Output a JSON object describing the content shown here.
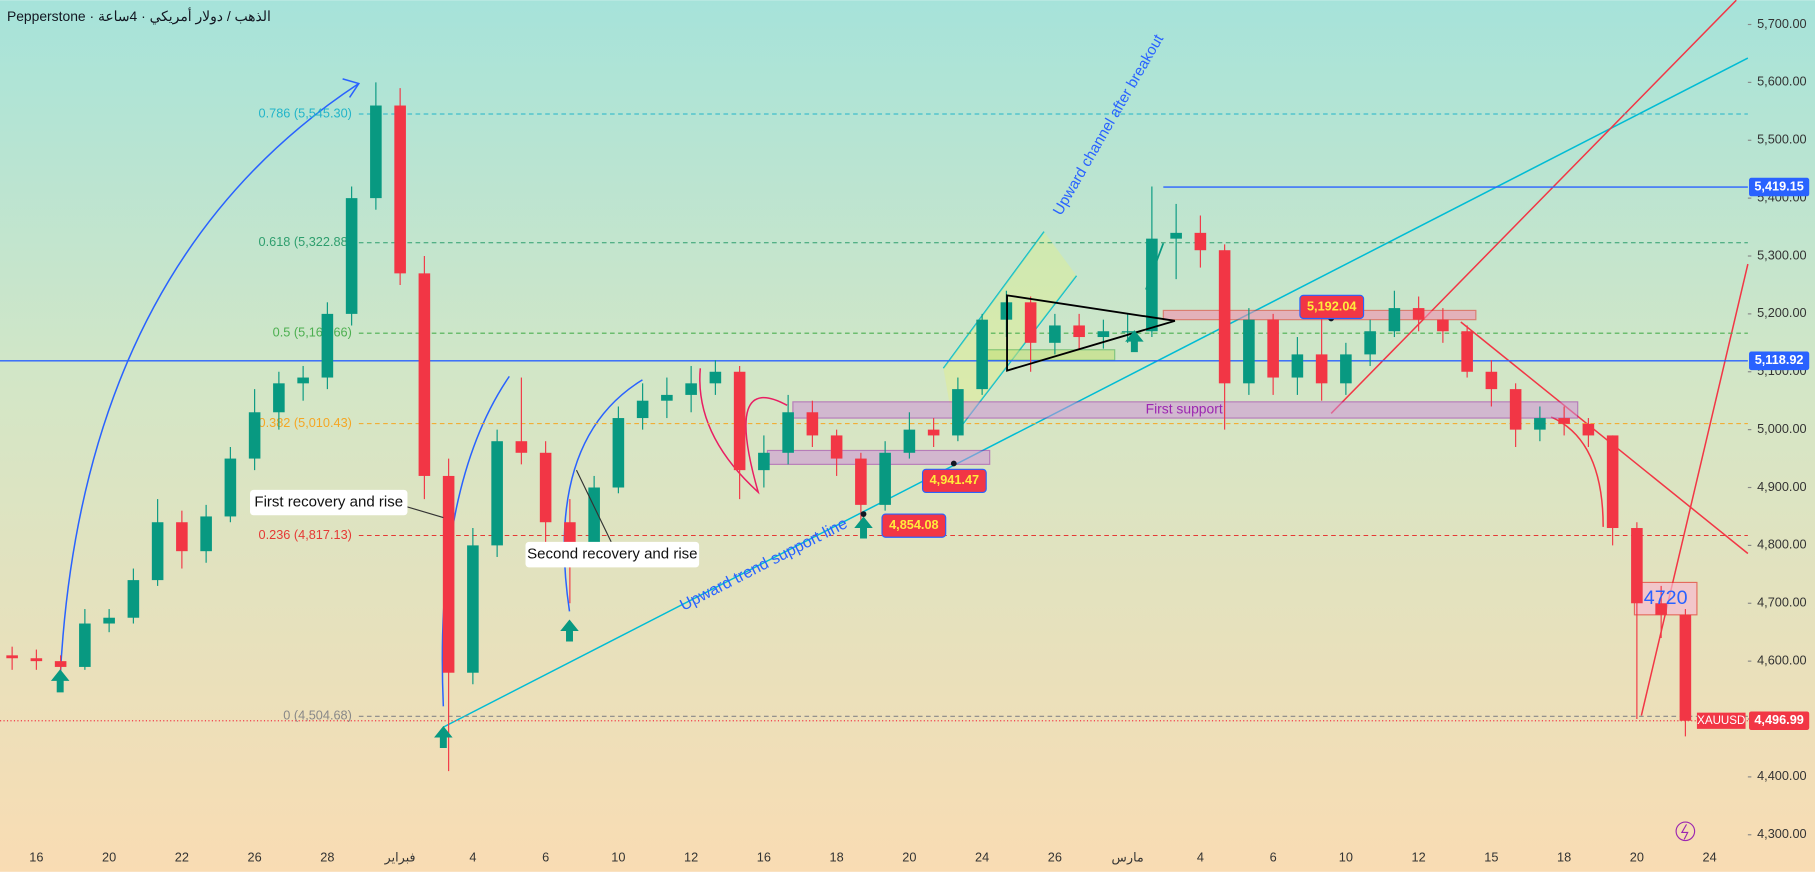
{
  "chart_data": {
    "type": "candlestick",
    "title": "Pepperstone · الذهب / دولار أمريكي · 4ساعة",
    "categories": [
      null,
      "16",
      null,
      null,
      "20",
      null,
      null,
      "22",
      null,
      null,
      "26",
      null,
      null,
      "28",
      null,
      null,
      "فبراير",
      null,
      null,
      "4",
      null,
      null,
      "6",
      null,
      null,
      "10",
      null,
      null,
      "12",
      null,
      null,
      "16",
      null,
      null,
      "18",
      null,
      null,
      "20",
      null,
      null,
      "24",
      null,
      null,
      "26",
      null,
      null,
      "مارس",
      null,
      null,
      "4",
      null,
      null,
      "6",
      null,
      null,
      "10",
      null,
      null,
      "12",
      null,
      null,
      "15",
      null,
      null,
      "18",
      null,
      null,
      "20",
      null,
      null,
      "24",
      null
    ],
    "open": [
      4610,
      4605,
      4600,
      4590,
      4665,
      4675,
      4740,
      4840,
      4790,
      4850,
      4950,
      5030,
      5080,
      5090,
      5200,
      5400,
      5560,
      5270,
      4920,
      4580,
      4800,
      4980,
      4960,
      4840,
      4790,
      4900,
      5020,
      5050,
      5060,
      5080,
      5100,
      4930,
      4960,
      5030,
      4990,
      4950,
      4870,
      4960,
      5000,
      4990,
      5070,
      5190,
      5220,
      5150,
      5180,
      5160,
      5170,
      5170,
      5330,
      5340,
      5310,
      5080,
      5190,
      5090,
      5130,
      5080,
      5130,
      5170,
      5210,
      5190,
      5170,
      5100,
      5070,
      5000,
      5020,
      5010,
      4990,
      4830,
      4700,
      4680,
      null,
      null
    ],
    "high": [
      4625,
      4620,
      4610,
      4690,
      4690,
      4760,
      4880,
      4860,
      4870,
      4970,
      5070,
      5100,
      5110,
      5220,
      5420,
      5600,
      5590,
      5300,
      4950,
      4830,
      5000,
      5090,
      4980,
      4880,
      4920,
      5040,
      5080,
      5090,
      5110,
      5120,
      5110,
      4990,
      5060,
      5050,
      5000,
      4960,
      4980,
      5030,
      5020,
      5090,
      5200,
      5240,
      5230,
      5200,
      5200,
      5190,
      5200,
      5420,
      5390,
      5370,
      5320,
      5210,
      5200,
      5160,
      5200,
      5150,
      5190,
      5240,
      5230,
      5210,
      5180,
      5120,
      5080,
      5040,
      5040,
      5020,
      4990,
      4840,
      4730,
      4690,
      null,
      null
    ],
    "low": [
      4585,
      4585,
      4550,
      4585,
      4650,
      4665,
      4730,
      4760,
      4770,
      4840,
      4930,
      5000,
      5050,
      5070,
      5180,
      5380,
      5250,
      4880,
      4410,
      4560,
      4780,
      4940,
      4800,
      4700,
      4770,
      4890,
      5000,
      5020,
      5030,
      5060,
      4880,
      4900,
      4940,
      4970,
      4920,
      4840,
      4860,
      4950,
      4970,
      4980,
      5060,
      5160,
      5100,
      5130,
      5140,
      5140,
      5150,
      5160,
      5260,
      5280,
      5000,
      5060,
      5060,
      5060,
      5050,
      5060,
      5110,
      5160,
      5170,
      5150,
      5090,
      5040,
      4970,
      4980,
      4990,
      4970,
      4800,
      4500,
      4640,
      4470,
      null,
      null
    ],
    "close": [
      4605,
      4600,
      4590,
      4665,
      4675,
      4740,
      4840,
      4790,
      4850,
      4950,
      5030,
      5080,
      5090,
      5200,
      5400,
      5560,
      5270,
      4920,
      4580,
      4800,
      4980,
      4960,
      4840,
      4790,
      4900,
      5020,
      5050,
      5060,
      5080,
      5100,
      4930,
      4960,
      5030,
      4990,
      4950,
      4870,
      4960,
      5000,
      4990,
      5070,
      5190,
      5220,
      5150,
      5180,
      5160,
      5170,
      5170,
      5330,
      5340,
      5310,
      5080,
      5190,
      5090,
      5130,
      5080,
      5130,
      5170,
      5210,
      5190,
      5170,
      5100,
      5070,
      5000,
      5020,
      5010,
      4990,
      4830,
      4700,
      4680,
      4496.99,
      null,
      null
    ],
    "up_color": "#089981",
    "down_color": "#f23645",
    "ylim": [
      4236,
      5742
    ],
    "yticks": [
      {
        "value": 4300,
        "label": "4,300.00"
      },
      {
        "value": 4400,
        "label": "4,400.00"
      },
      {
        "value": 4500,
        "label": "4,500.00"
      },
      {
        "value": 4600,
        "label": "4,600.00"
      },
      {
        "value": 4700,
        "label": "4,700.00"
      },
      {
        "value": 4800,
        "label": "4,800.00"
      },
      {
        "value": 4900,
        "label": "4,900.00"
      },
      {
        "value": 5000,
        "label": "5,000.00"
      },
      {
        "value": 5100,
        "label": "5,100.00"
      },
      {
        "value": 5200,
        "label": "5,200.00"
      },
      {
        "value": 5300,
        "label": "5,300.00"
      },
      {
        "value": 5400,
        "label": "5,400.00"
      },
      {
        "value": 5500,
        "label": "5,500.00"
      },
      {
        "value": 5600,
        "label": "5,600.00"
      },
      {
        "value": 5700,
        "label": "5,700.00"
      }
    ],
    "fib_levels": [
      {
        "value": 5545.3,
        "label": "0.786 (5,545.30)",
        "color": "#22b5c9"
      },
      {
        "value": 5322.88,
        "label": "0.618 (5,322.88)",
        "color": "#2e9e6e"
      },
      {
        "value": 5166.66,
        "label": "0.5 (5,166.66)",
        "color": "#4caf50"
      },
      {
        "value": 5010.43,
        "label": "0.382 (5,010.43)",
        "color": "#f5a623"
      },
      {
        "value": 4817.13,
        "label": "0.236 (4,817.13)",
        "color": "#e53935"
      },
      {
        "value": 4504.68,
        "label": "0 (4,504.68)",
        "color": "#888888"
      }
    ],
    "lines": [
      {
        "value": 5419.15,
        "label": "5,419.15",
        "color": "#2962ff"
      },
      {
        "value": 5118.92,
        "label": "5,118.92",
        "color": "#2962ff"
      }
    ],
    "last_price": {
      "value": 4496.99,
      "label": "4,496.99",
      "symbol": "XAUUSD"
    },
    "callouts": [
      {
        "value": 4941.47,
        "label": "4,941.47"
      },
      {
        "value": 4854.08,
        "label": "4,854.08"
      },
      {
        "value": 5192.04,
        "label": "5,192.04"
      }
    ],
    "notes": [
      "First recovery and rise",
      "Second recovery and rise",
      "Upward trend support line",
      "Upward channel after breakout",
      "First support",
      "4720"
    ]
  }
}
